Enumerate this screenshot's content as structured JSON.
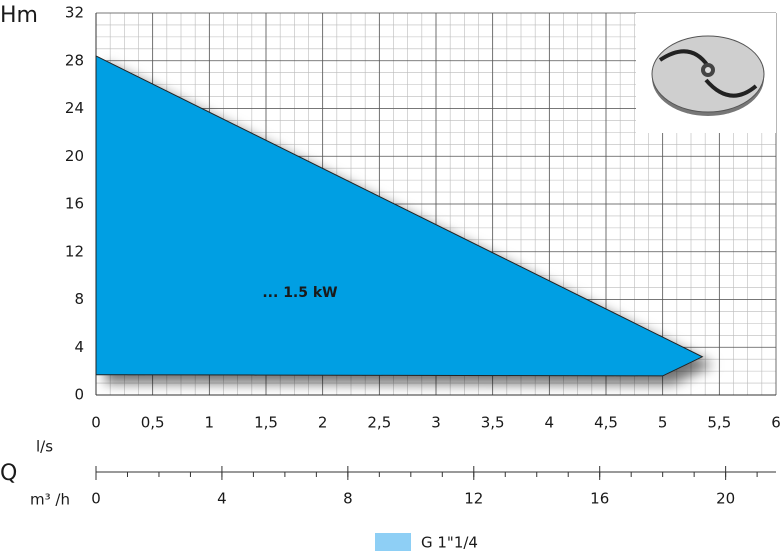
{
  "chart_data": {
    "type": "area",
    "y_label": "Hm",
    "x_label": "l/s",
    "x2_title": "Q",
    "x2_label": "m³ /h",
    "annotation": "... 1.5 kW",
    "series": [
      {
        "name": "G 1\"1/4",
        "color": "#009fe3",
        "legend_color": "#8ecff5",
        "x": [
          0,
          5.35,
          5.0,
          0
        ],
        "values": [
          28.4,
          3.2,
          1.6,
          1.7
        ]
      }
    ],
    "xlim": [
      0,
      6
    ],
    "xticks": [
      0,
      {
        "value": 0.5,
        "label": "0,5"
      },
      1,
      {
        "value": 1.5,
        "label": "1,5"
      },
      2,
      {
        "value": 2.5,
        "label": "2,5"
      },
      3,
      {
        "value": 3.5,
        "label": "3,5"
      },
      4,
      {
        "value": 4.5,
        "label": "4,5"
      },
      5,
      {
        "value": 5.5,
        "label": "5,5"
      },
      6
    ],
    "ylim": [
      0,
      32
    ],
    "yticks": [
      0,
      4,
      8,
      12,
      16,
      20,
      24,
      28,
      32
    ],
    "x2lim": [
      0,
      21.6
    ],
    "x2ticks": [
      0,
      4,
      8,
      12,
      16,
      20
    ],
    "grid": true,
    "legend": "bottom"
  }
}
